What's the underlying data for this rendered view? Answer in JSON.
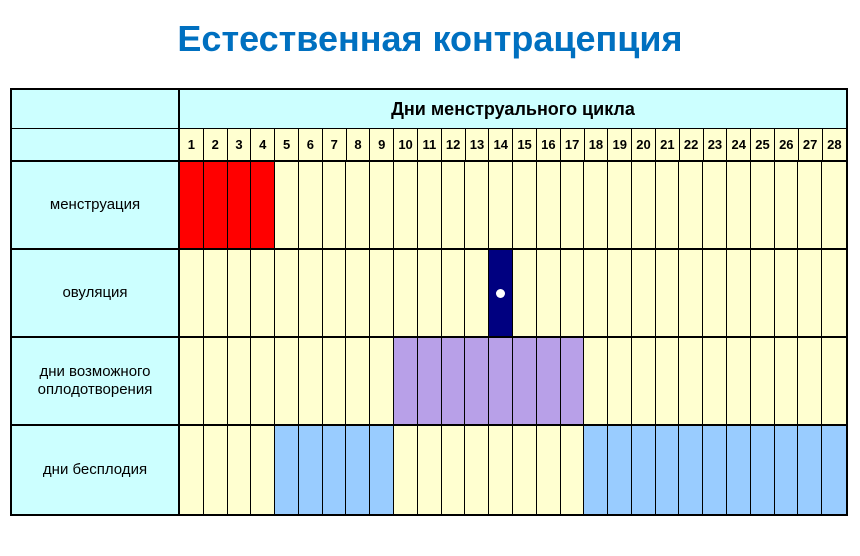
{
  "title": "Естественная контрацепция",
  "header_label": "Дни менструального цикла",
  "days": [
    1,
    2,
    3,
    4,
    5,
    6,
    7,
    8,
    9,
    10,
    11,
    12,
    13,
    14,
    15,
    16,
    17,
    18,
    19,
    20,
    21,
    22,
    23,
    24,
    25,
    26,
    27,
    28
  ],
  "colors": {
    "title": "#0070c0",
    "label_bg": "#ccffff",
    "default_cell": "#ffffd0",
    "menstruation": "#ff0000",
    "ovulation": "#000080",
    "ovulation_marker": "#ffffff",
    "fertile": "#b8a0e8",
    "infertile": "#99ccff",
    "border": "#000000"
  },
  "rows": [
    {
      "label": "менструация",
      "fills": {
        "1": "#ff0000",
        "2": "#ff0000",
        "3": "#ff0000",
        "4": "#ff0000"
      },
      "markers": {}
    },
    {
      "label": "овуляция",
      "fills": {
        "14": "#000080"
      },
      "markers": {
        "14": "dot"
      }
    },
    {
      "label": "дни возможного оплодотворения",
      "fills": {
        "10": "#b8a0e8",
        "11": "#b8a0e8",
        "12": "#b8a0e8",
        "13": "#b8a0e8",
        "14": "#b8a0e8",
        "15": "#b8a0e8",
        "16": "#b8a0e8",
        "17": "#b8a0e8"
      },
      "markers": {}
    },
    {
      "label": "дни бесплодия",
      "fills": {
        "5": "#99ccff",
        "6": "#99ccff",
        "7": "#99ccff",
        "8": "#99ccff",
        "9": "#99ccff",
        "18": "#99ccff",
        "19": "#99ccff",
        "20": "#99ccff",
        "21": "#99ccff",
        "22": "#99ccff",
        "23": "#99ccff",
        "24": "#99ccff",
        "25": "#99ccff",
        "26": "#99ccff",
        "27": "#99ccff",
        "28": "#99ccff"
      },
      "markers": {}
    }
  ]
}
